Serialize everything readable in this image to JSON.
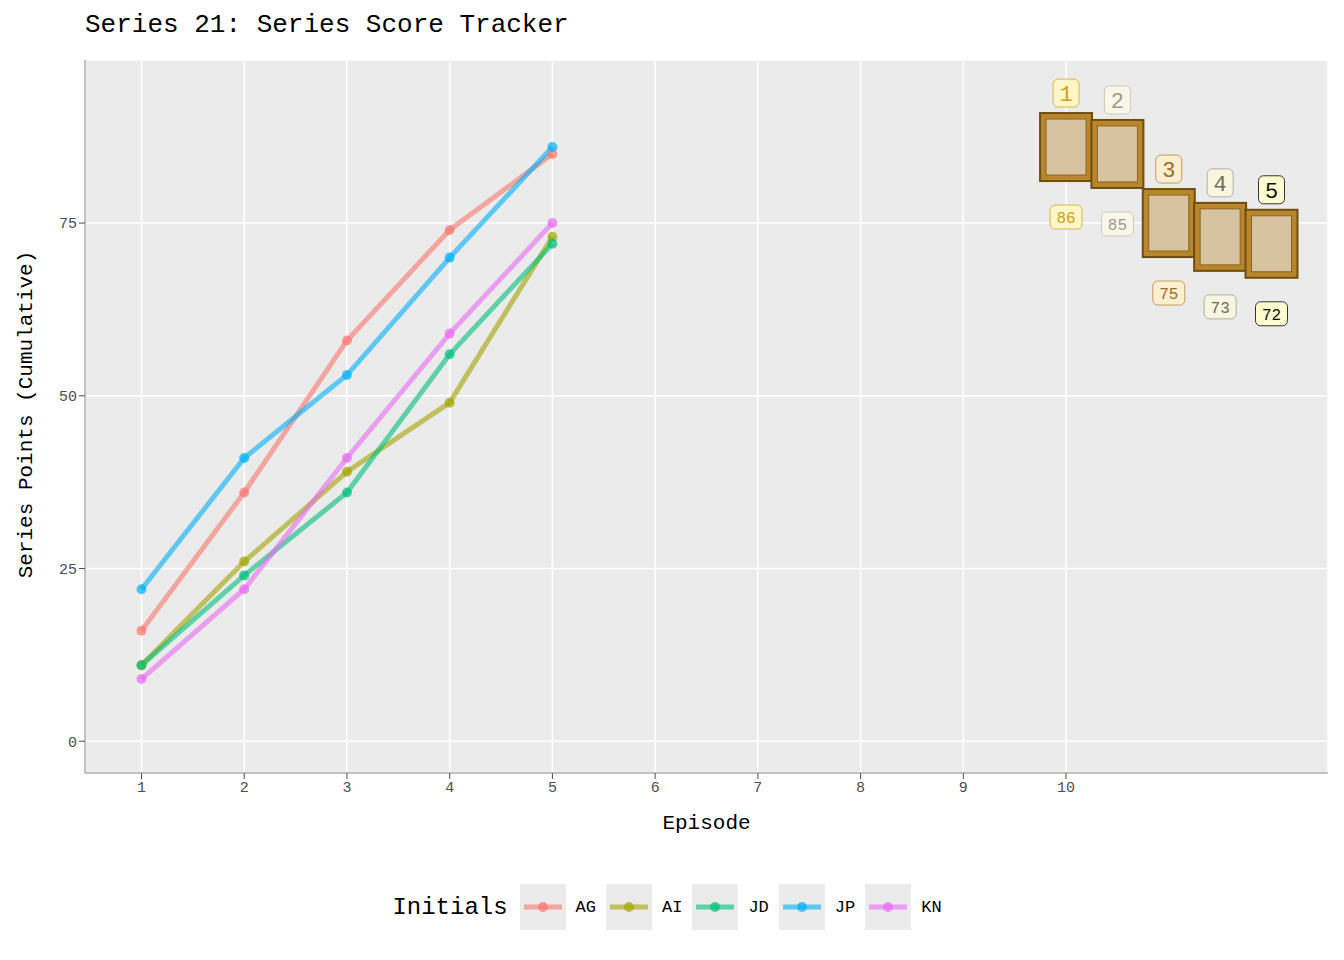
{
  "chart_data": {
    "type": "line",
    "title": "Series 21: Series Score Tracker",
    "x_label": "Episode",
    "y_label": "Series Points (Cumulative)",
    "x": [
      1,
      2,
      3,
      4,
      5
    ],
    "series": [
      {
        "name": "AG",
        "color": "#F8766D",
        "values": [
          16,
          36,
          58,
          74,
          85
        ]
      },
      {
        "name": "AI",
        "color": "#A3A500",
        "values": [
          11,
          26,
          39,
          49,
          73
        ]
      },
      {
        "name": "JD",
        "color": "#00BF7D",
        "values": [
          11,
          24,
          36,
          56,
          72
        ]
      },
      {
        "name": "JP",
        "color": "#00B0F6",
        "values": [
          22,
          41,
          53,
          70,
          86
        ]
      },
      {
        "name": "KN",
        "color": "#E76BF3",
        "values": [
          9,
          22,
          41,
          59,
          75
        ]
      }
    ],
    "xlim": [
      0.45,
      12.55
    ],
    "xticks": [
      1,
      2,
      3,
      4,
      5,
      6,
      7,
      8,
      9,
      10
    ],
    "ylim": [
      -4.6,
      98.6
    ],
    "yticks": [
      0,
      25,
      50,
      75
    ],
    "grid": true,
    "legend": "bottom",
    "legend_title": "Initials",
    "marker": "circle",
    "ranking": [
      {
        "rank": "1",
        "score": 86
      },
      {
        "rank": "2",
        "score": 85
      },
      {
        "rank": "3",
        "score": 75
      },
      {
        "rank": "4",
        "score": 73
      },
      {
        "rank": "5",
        "score": 72
      }
    ]
  }
}
